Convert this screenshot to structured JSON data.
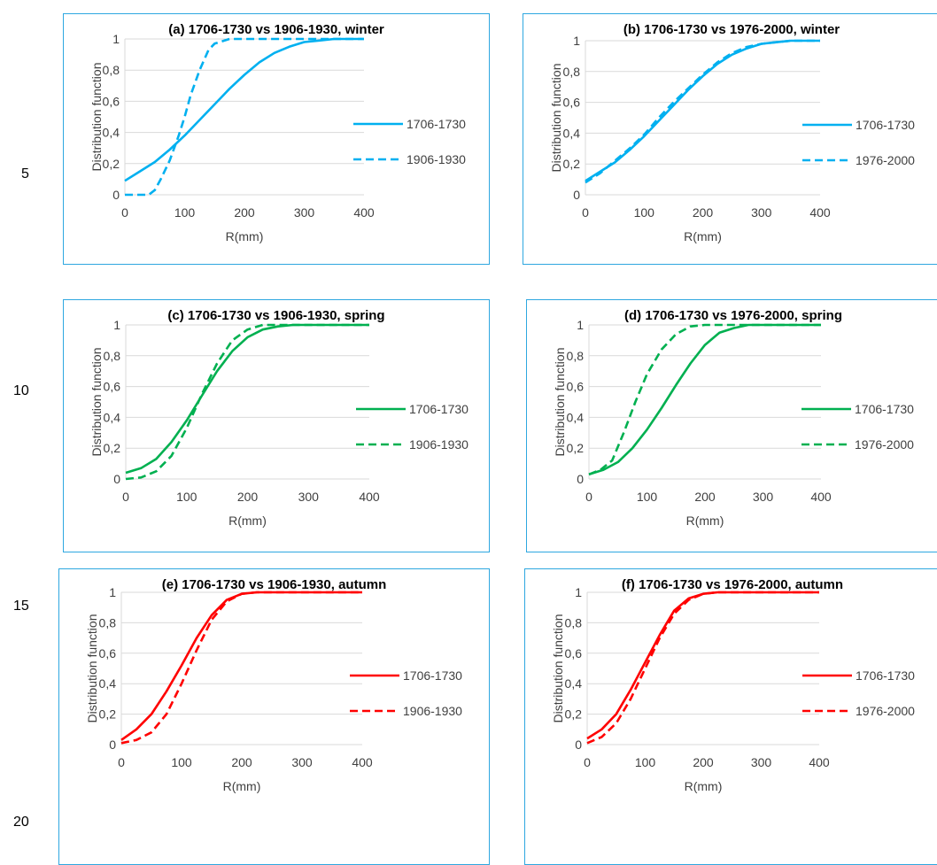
{
  "line_numbers": [
    "5",
    "10",
    "15",
    "20"
  ],
  "chart_data": [
    {
      "id": "a",
      "type": "line",
      "title": "(a) 1706-1730 vs 1906-1930, winter",
      "xlabel": "R(mm)",
      "ylabel": "Distribution function",
      "xlim": [
        0,
        400
      ],
      "ylim": [
        0,
        1
      ],
      "xticks": [
        "0",
        "100",
        "200",
        "300",
        "400"
      ],
      "yticks": [
        "0",
        "0,2",
        "0,4",
        "0,6",
        "0,8",
        "1"
      ],
      "grid": true,
      "legend": "right",
      "color": "#00b0f0",
      "series": [
        {
          "name": "1706-1730",
          "style": "solid",
          "x": [
            0,
            25,
            50,
            75,
            100,
            125,
            150,
            175,
            200,
            225,
            250,
            275,
            300,
            325,
            350,
            375,
            400
          ],
          "y": [
            0.09,
            0.15,
            0.21,
            0.29,
            0.38,
            0.48,
            0.58,
            0.68,
            0.77,
            0.85,
            0.91,
            0.95,
            0.98,
            0.99,
            1.0,
            1.0,
            1.0
          ]
        },
        {
          "name": "1906-1930",
          "style": "dashed",
          "x": [
            0,
            25,
            40,
            50,
            60,
            75,
            90,
            100,
            110,
            125,
            140,
            150,
            175,
            200,
            250,
            300,
            350,
            400
          ],
          "y": [
            0,
            0,
            0,
            0.03,
            0.1,
            0.22,
            0.38,
            0.5,
            0.64,
            0.8,
            0.93,
            0.97,
            1.0,
            1.0,
            1.0,
            1.0,
            1.0,
            1.0
          ]
        }
      ]
    },
    {
      "id": "b",
      "type": "line",
      "title": "(b) 1706-1730 vs 1976-2000, winter",
      "xlabel": "R(mm)",
      "ylabel": "Distribution function",
      "xlim": [
        0,
        400
      ],
      "ylim": [
        0,
        1
      ],
      "xticks": [
        "0",
        "100",
        "200",
        "300",
        "400"
      ],
      "yticks": [
        "0",
        "0,2",
        "0,4",
        "0,6",
        "0,8",
        "1"
      ],
      "grid": true,
      "legend": "right",
      "color": "#00b0f0",
      "series": [
        {
          "name": "1706-1730",
          "style": "solid",
          "x": [
            0,
            25,
            50,
            75,
            100,
            125,
            150,
            175,
            200,
            225,
            250,
            275,
            300,
            325,
            350,
            375,
            400
          ],
          "y": [
            0.09,
            0.15,
            0.21,
            0.29,
            0.38,
            0.48,
            0.58,
            0.68,
            0.77,
            0.85,
            0.91,
            0.95,
            0.98,
            0.99,
            1.0,
            1.0,
            1.0
          ]
        },
        {
          "name": "1976-2000",
          "style": "dashed",
          "x": [
            0,
            25,
            50,
            75,
            100,
            125,
            150,
            175,
            200,
            225,
            250,
            275,
            300,
            325,
            350,
            375,
            400
          ],
          "y": [
            0.08,
            0.14,
            0.22,
            0.3,
            0.39,
            0.5,
            0.6,
            0.69,
            0.78,
            0.86,
            0.92,
            0.96,
            0.98,
            0.99,
            1.0,
            1.0,
            1.0
          ]
        }
      ]
    },
    {
      "id": "c",
      "type": "line",
      "title": "(c) 1706-1730 vs 1906-1930, spring",
      "xlabel": "R(mm)",
      "ylabel": "Distribution function",
      "xlim": [
        0,
        400
      ],
      "ylim": [
        0,
        1
      ],
      "xticks": [
        "0",
        "100",
        "200",
        "300",
        "400"
      ],
      "yticks": [
        "0",
        "0,2",
        "0,4",
        "0,6",
        "0,8",
        "1"
      ],
      "grid": true,
      "legend": "right",
      "color": "#00b050",
      "series": [
        {
          "name": "1706-1730",
          "style": "solid",
          "x": [
            0,
            25,
            50,
            75,
            100,
            125,
            150,
            175,
            200,
            225,
            250,
            275,
            300,
            350,
            400
          ],
          "y": [
            0.04,
            0.07,
            0.13,
            0.24,
            0.38,
            0.54,
            0.7,
            0.83,
            0.92,
            0.97,
            0.99,
            1.0,
            1.0,
            1.0,
            1.0
          ]
        },
        {
          "name": "1906-1930",
          "style": "dashed",
          "x": [
            0,
            25,
            50,
            75,
            100,
            125,
            150,
            175,
            200,
            225,
            250,
            275,
            300,
            350,
            400
          ],
          "y": [
            0,
            0.01,
            0.05,
            0.15,
            0.33,
            0.55,
            0.75,
            0.9,
            0.97,
            1.0,
            1.0,
            1.0,
            1.0,
            1.0,
            1.0
          ]
        }
      ]
    },
    {
      "id": "d",
      "type": "line",
      "title": "(d) 1706-1730 vs 1976-2000, spring",
      "xlabel": "R(mm)",
      "ylabel": "Distribution function",
      "xlim": [
        0,
        400
      ],
      "ylim": [
        0,
        1
      ],
      "xticks": [
        "0",
        "100",
        "200",
        "300",
        "400"
      ],
      "yticks": [
        "0",
        "0,2",
        "0,4",
        "0,6",
        "0,8",
        "1"
      ],
      "grid": true,
      "legend": "right",
      "color": "#00b050",
      "series": [
        {
          "name": "1706-1730",
          "style": "solid",
          "x": [
            0,
            25,
            50,
            75,
            100,
            125,
            150,
            175,
            200,
            225,
            250,
            275,
            300,
            350,
            400
          ],
          "y": [
            0.03,
            0.06,
            0.11,
            0.2,
            0.32,
            0.46,
            0.61,
            0.75,
            0.87,
            0.95,
            0.98,
            1.0,
            1.0,
            1.0,
            1.0
          ]
        },
        {
          "name": "1976-2000",
          "style": "dashed",
          "x": [
            0,
            20,
            40,
            60,
            80,
            100,
            125,
            150,
            175,
            200,
            225,
            250,
            300,
            350,
            400
          ],
          "y": [
            0.03,
            0.06,
            0.12,
            0.3,
            0.5,
            0.68,
            0.84,
            0.94,
            0.99,
            1.0,
            1.0,
            1.0,
            1.0,
            1.0,
            1.0
          ]
        }
      ]
    },
    {
      "id": "e",
      "type": "line",
      "title": "(e) 1706-1730 vs 1906-1930, autumn",
      "xlabel": "R(mm)",
      "ylabel": "Distribution function",
      "xlim": [
        0,
        400
      ],
      "ylim": [
        0,
        1
      ],
      "xticks": [
        "0",
        "100",
        "200",
        "300",
        "400"
      ],
      "yticks": [
        "0",
        "0,2",
        "0,4",
        "0,6",
        "0,8",
        "1"
      ],
      "grid": true,
      "legend": "right",
      "color": "#ff0000",
      "series": [
        {
          "name": "1706-1730",
          "style": "solid",
          "x": [
            0,
            25,
            50,
            75,
            100,
            125,
            150,
            175,
            200,
            225,
            250,
            300,
            350,
            400
          ],
          "y": [
            0.03,
            0.1,
            0.2,
            0.35,
            0.52,
            0.7,
            0.85,
            0.95,
            0.99,
            1.0,
            1.0,
            1.0,
            1.0,
            1.0
          ]
        },
        {
          "name": "1906-1930",
          "style": "dashed",
          "x": [
            0,
            25,
            50,
            75,
            100,
            125,
            150,
            175,
            200,
            225,
            250,
            300,
            350,
            400
          ],
          "y": [
            0.01,
            0.03,
            0.08,
            0.2,
            0.4,
            0.62,
            0.82,
            0.94,
            0.99,
            1.0,
            1.0,
            1.0,
            1.0,
            1.0
          ]
        }
      ]
    },
    {
      "id": "f",
      "type": "line",
      "title": "(f) 1706-1730 vs 1976-2000, autumn",
      "xlabel": "R(mm)",
      "ylabel": "Distribution function",
      "xlim": [
        0,
        400
      ],
      "ylim": [
        0,
        1
      ],
      "xticks": [
        "0",
        "100",
        "200",
        "300",
        "400"
      ],
      "yticks": [
        "0",
        "0,2",
        "0,4",
        "0,6",
        "0,8",
        "1"
      ],
      "grid": true,
      "legend": "right",
      "color": "#ff0000",
      "series": [
        {
          "name": "1706-1730",
          "style": "solid",
          "x": [
            0,
            25,
            50,
            75,
            100,
            125,
            150,
            175,
            200,
            225,
            250,
            300,
            350,
            400
          ],
          "y": [
            0.04,
            0.1,
            0.2,
            0.36,
            0.54,
            0.72,
            0.88,
            0.96,
            0.99,
            1.0,
            1.0,
            1.0,
            1.0,
            1.0
          ]
        },
        {
          "name": "1976-2000",
          "style": "dashed",
          "x": [
            0,
            25,
            50,
            75,
            100,
            125,
            150,
            175,
            200,
            225,
            250,
            300,
            350,
            400
          ],
          "y": [
            0.01,
            0.05,
            0.14,
            0.3,
            0.5,
            0.7,
            0.86,
            0.95,
            0.99,
            1.0,
            1.0,
            1.0,
            1.0,
            1.0
          ]
        }
      ]
    }
  ]
}
